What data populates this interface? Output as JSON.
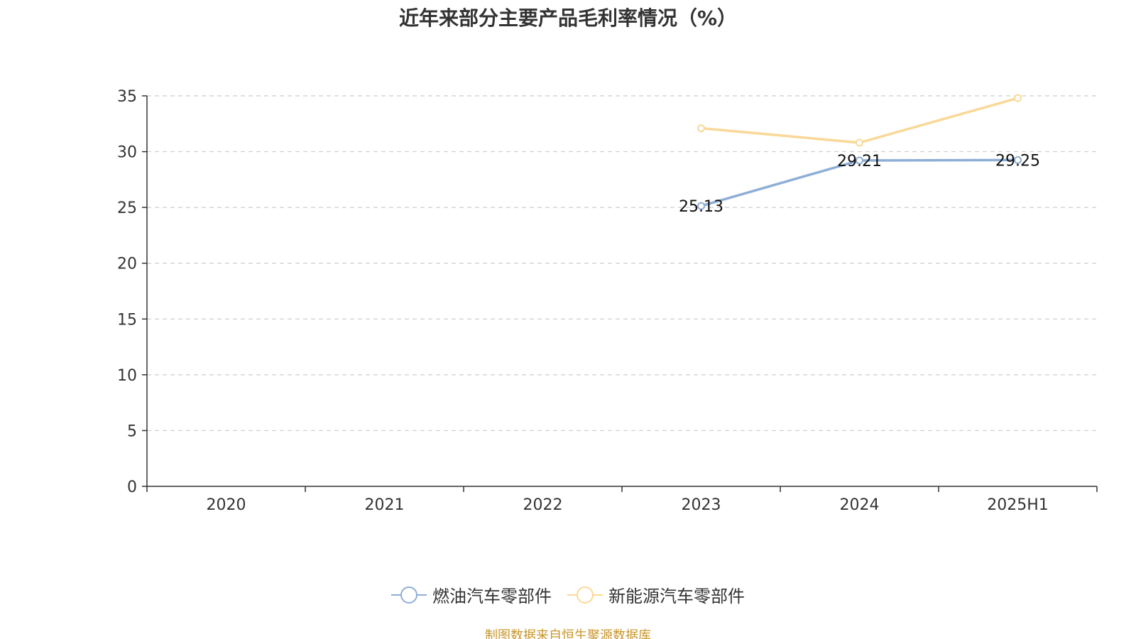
{
  "chart_data": {
    "type": "line",
    "title": "近年来部分主要产品毛利率情况（%）",
    "categories": [
      "2020",
      "2021",
      "2022",
      "2023",
      "2024",
      "2025H1"
    ],
    "series": [
      {
        "name": "燃油汽车零部件",
        "color": "#8eaed6",
        "values": [
          null,
          null,
          null,
          25.13,
          29.21,
          29.25
        ],
        "labels": [
          "",
          "",
          "",
          "25.13",
          "29.21",
          "29.25"
        ]
      },
      {
        "name": "新能源汽车零部件",
        "color": "#f9d898",
        "values": [
          null,
          null,
          null,
          32.1,
          30.8,
          34.8
        ],
        "labels": [
          "",
          "",
          "",
          "",
          "",
          ""
        ]
      }
    ],
    "yticks": [
      "0",
      "5",
      "10",
      "15",
      "20",
      "25",
      "30",
      "35"
    ],
    "ylim": [
      0,
      35
    ],
    "grid": true,
    "legend_position": "bottom"
  },
  "source_note": "制图数据来自恒生聚源数据库",
  "colors": {
    "axis": "#333333",
    "grid": "#cccccc",
    "source_note": "#c8962a"
  }
}
